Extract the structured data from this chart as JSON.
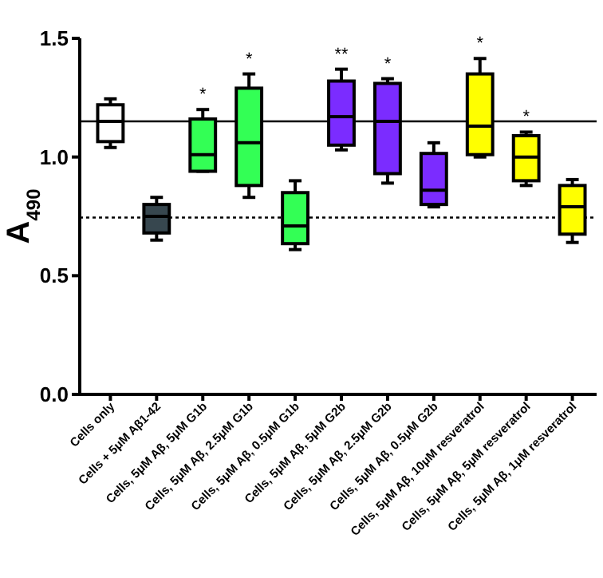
{
  "chart_data": {
    "type": "box",
    "ylabel": "A$_{490}$",
    "categories": [
      "Cells only",
      "Cells + 5μM Aβ1-42",
      "Cells, 5μM Aβ, 5μM G1b",
      "Cells, 5μM Aβ, 2.5μM G1b",
      "Cells, 5μM Aβ, 0.5μM G1b",
      "Cells, 5μM Aβ, 5μM G2b",
      "Cells, 5μM Aβ, 2.5μM G2b",
      "Cells, 5μM Aβ, 0.5μM G2b",
      "Cells, 5μM Aβ, 10μM resveratrol",
      "Cells, 5μM Aβ, 5μM resveratrol",
      "Cells, 5μM Aβ, 1μM resveratrol"
    ],
    "colors": [
      "#ffffff",
      "#37474f",
      "#33ff55",
      "#33ff55",
      "#33ff55",
      "#7b2cff",
      "#7b2cff",
      "#7b2cff",
      "#ffff00",
      "#ffff00",
      "#ffff00"
    ],
    "boxes": [
      {
        "low": 1.04,
        "q1": 1.065,
        "median": 1.15,
        "q3": 1.22,
        "high": 1.245
      },
      {
        "low": 0.65,
        "q1": 0.68,
        "median": 0.75,
        "q3": 0.8,
        "high": 0.83
      },
      {
        "low": 0.94,
        "q1": 0.94,
        "median": 1.01,
        "q3": 1.16,
        "high": 1.2
      },
      {
        "low": 0.83,
        "q1": 0.88,
        "median": 1.06,
        "q3": 1.29,
        "high": 1.35
      },
      {
        "low": 0.61,
        "q1": 0.635,
        "median": 0.71,
        "q3": 0.85,
        "high": 0.9
      },
      {
        "low": 1.03,
        "q1": 1.05,
        "median": 1.17,
        "q3": 1.32,
        "high": 1.37
      },
      {
        "low": 0.89,
        "q1": 0.93,
        "median": 1.15,
        "q3": 1.31,
        "high": 1.33
      },
      {
        "low": 0.79,
        "q1": 0.8,
        "median": 0.86,
        "q3": 1.015,
        "high": 1.06
      },
      {
        "low": 1.0,
        "q1": 1.01,
        "median": 1.13,
        "q3": 1.35,
        "high": 1.415
      },
      {
        "low": 0.88,
        "q1": 0.9,
        "median": 1.0,
        "q3": 1.09,
        "high": 1.105
      },
      {
        "low": 0.64,
        "q1": 0.675,
        "median": 0.79,
        "q3": 0.88,
        "high": 0.905
      }
    ],
    "ylim": [
      0,
      1.5
    ],
    "yticks": [
      {
        "value": 0,
        "label": "0.0"
      },
      {
        "value": 0.5,
        "label": "0.5"
      },
      {
        "value": 1,
        "label": "1.0"
      },
      {
        "value": 1.5,
        "label": "1.5"
      }
    ],
    "ref_lines": [
      {
        "axis": "y",
        "value": 1.15,
        "line_style": "solid",
        "color": "#000000"
      },
      {
        "axis": "y",
        "value": 0.745,
        "line_style": "dotted",
        "color": "#000000"
      }
    ],
    "annotations": [
      {
        "text": "*",
        "x": "Cells, 5μM Aβ, 5μM G1b",
        "y": 1.2
      },
      {
        "text": "*",
        "x": "Cells, 5μM Aβ, 2.5μM G1b",
        "y": 1.35
      },
      {
        "text": "**",
        "x": "Cells, 5μM Aβ, 5μM G2b",
        "y": 1.37
      },
      {
        "text": "*",
        "x": "Cells, 5μM Aβ, 2.5μM G2b",
        "y": 1.33
      },
      {
        "text": "*",
        "x": "Cells, 5μM Aβ, 10μM resveratrol",
        "y": 1.415
      },
      {
        "text": "*",
        "x": "Cells, 5μM Aβ, 5μM resveratrol",
        "y": 1.105
      }
    ],
    "grid": false
  }
}
